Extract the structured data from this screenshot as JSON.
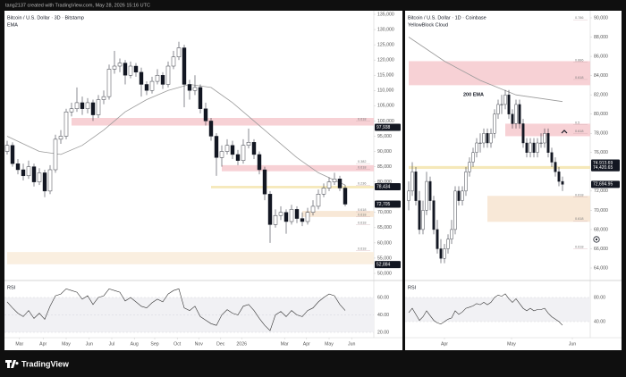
{
  "header": "tang2137 created with TradingView.com, May 28, 2026 15:16 UTC",
  "brand": "TradingView",
  "chart_data": [
    {
      "type": "candlestick",
      "title": "Bitcoin / U.S. Dollar · 3D · Bitstamp",
      "subtitle": "EMA",
      "up_color": "#ffffff",
      "down_color": "#131722",
      "candles": [
        [
          90000,
          93500,
          89000,
          92000
        ],
        [
          92000,
          93000,
          85000,
          86000
        ],
        [
          86000,
          87500,
          82500,
          84000
        ],
        [
          84000,
          86000,
          80500,
          82000
        ],
        [
          82000,
          87000,
          81000,
          85000
        ],
        [
          85000,
          86000,
          78500,
          80000
        ],
        [
          80000,
          84500,
          79000,
          83000
        ],
        [
          83000,
          84000,
          75000,
          77000
        ],
        [
          77000,
          85500,
          76000,
          84000
        ],
        [
          84000,
          95500,
          83000,
          94000
        ],
        [
          94000,
          97000,
          92500,
          95000
        ],
        [
          95000,
          104000,
          94000,
          103000
        ],
        [
          103000,
          106000,
          101500,
          104000
        ],
        [
          104000,
          111000,
          103000,
          106000
        ],
        [
          106000,
          108000,
          102000,
          104000
        ],
        [
          104000,
          107500,
          102500,
          106000
        ],
        [
          106000,
          107000,
          100000,
          102000
        ],
        [
          102000,
          108500,
          101000,
          107000
        ],
        [
          107000,
          110000,
          105500,
          108000
        ],
        [
          108000,
          118500,
          107000,
          117000
        ],
        [
          117000,
          123000,
          115500,
          118000
        ],
        [
          118000,
          120500,
          116000,
          119000
        ],
        [
          119000,
          120000,
          112000,
          115000
        ],
        [
          115000,
          119500,
          114000,
          118000
        ],
        [
          118000,
          119000,
          114500,
          116000
        ],
        [
          116000,
          117500,
          108000,
          112000
        ],
        [
          112000,
          113000,
          108500,
          110000
        ],
        [
          110000,
          114500,
          109000,
          113000
        ],
        [
          113000,
          117000,
          112000,
          115000
        ],
        [
          115000,
          116000,
          110500,
          112000
        ],
        [
          112000,
          119500,
          111000,
          118000
        ],
        [
          118000,
          123000,
          117000,
          121000
        ],
        [
          121000,
          126000,
          120000,
          124000
        ],
        [
          124000,
          125000,
          104500,
          112000
        ],
        [
          112000,
          113500,
          107000,
          110000
        ],
        [
          110000,
          115000,
          108500,
          111000
        ],
        [
          111000,
          112000,
          102500,
          104000
        ],
        [
          104000,
          106000,
          98500,
          100000
        ],
        [
          100000,
          101000,
          93500,
          95000
        ],
        [
          95000,
          96000,
          82000,
          88000
        ],
        [
          88000,
          92000,
          85000,
          90000
        ],
        [
          90000,
          94000,
          89000,
          92000
        ],
        [
          92000,
          93500,
          87500,
          89000
        ],
        [
          89000,
          90500,
          85500,
          87000
        ],
        [
          87000,
          94000,
          86000,
          92000
        ],
        [
          92000,
          97500,
          91000,
          93000
        ],
        [
          93000,
          94000,
          87500,
          89000
        ],
        [
          89000,
          90000,
          82500,
          84000
        ],
        [
          84000,
          85000,
          74000,
          76000
        ],
        [
          76000,
          77000,
          60000,
          66000
        ],
        [
          66000,
          71000,
          65000,
          69000
        ],
        [
          69000,
          72000,
          67500,
          70000
        ],
        [
          70000,
          71000,
          63000,
          67000
        ],
        [
          67000,
          72500,
          66000,
          71000
        ],
        [
          71000,
          72000,
          66500,
          68000
        ],
        [
          68000,
          70000,
          65500,
          67000
        ],
        [
          67000,
          71500,
          66000,
          70000
        ],
        [
          70000,
          74000,
          69000,
          72000
        ],
        [
          72000,
          77500,
          71000,
          76000
        ],
        [
          76000,
          79500,
          75000,
          78000
        ],
        [
          78000,
          81500,
          77000,
          80000
        ],
        [
          80000,
          83000,
          79000,
          81000
        ],
        [
          81000,
          82000,
          77000,
          78000
        ],
        [
          78000,
          79000,
          72000,
          72705
        ]
      ],
      "ema": {
        "x": [
          0,
          6,
          10,
          14,
          18,
          22,
          26,
          30,
          34,
          38,
          42,
          46,
          50,
          54,
          58,
          63
        ],
        "values": [
          95000,
          90000,
          89000,
          92000,
          97000,
          103000,
          107000,
          110000,
          112000,
          111000,
          106000,
          100000,
          94000,
          88000,
          83000,
          79000
        ]
      },
      "ylim": [
        50000,
        135000
      ],
      "yticks": [
        {
          "value": 50000,
          "label": "50,000"
        },
        {
          "value": 55000,
          "label": "55,000"
        },
        {
          "value": 60000,
          "label": "60,000"
        },
        {
          "value": 65000,
          "label": "65,000"
        },
        {
          "value": 70000,
          "label": "70,000"
        },
        {
          "value": 80000,
          "label": "80,000"
        },
        {
          "value": 85000,
          "label": "85,000"
        },
        {
          "value": 90000,
          "label": "90,000"
        },
        {
          "value": 95000,
          "label": "95,000"
        },
        {
          "value": 100000,
          "label": "100,000"
        },
        {
          "value": 105000,
          "label": "105,000"
        },
        {
          "value": 110000,
          "label": "110,000"
        },
        {
          "value": 115000,
          "label": "115,000"
        },
        {
          "value": 120000,
          "label": "120,000"
        },
        {
          "value": 125000,
          "label": "125,000"
        },
        {
          "value": 130000,
          "label": "130,000"
        },
        {
          "value": 135000,
          "label": "135,000"
        }
      ],
      "xticks": [
        {
          "value": 2.3,
          "label": "Mar"
        },
        {
          "value": 6.7,
          "label": "Apr"
        },
        {
          "value": 11,
          "label": "May"
        },
        {
          "value": 15.3,
          "label": "Jun"
        },
        {
          "value": 19.5,
          "label": "Jul"
        },
        {
          "value": 23.7,
          "label": "Aug"
        },
        {
          "value": 27.5,
          "label": "Sep"
        },
        {
          "value": 31.7,
          "label": "Oct"
        },
        {
          "value": 35.7,
          "label": "Nov"
        },
        {
          "value": 39.8,
          "label": "Dec"
        },
        {
          "value": 43.7,
          "label": "2026"
        },
        {
          "value": 51.7,
          "label": "Mar"
        },
        {
          "value": 55.8,
          "label": "Apr"
        },
        {
          "value": 60,
          "label": "May"
        },
        {
          "value": 64.2,
          "label": "Jun"
        }
      ],
      "zones": [
        {
          "from": 98500,
          "to": 101000,
          "start": 12,
          "color": "#f6c9ce"
        },
        {
          "from": 83500,
          "to": 85500,
          "start": 40,
          "color": "#f6c9ce"
        },
        {
          "from": 77900,
          "to": 78700,
          "start": 38,
          "color": "#f3e4ad"
        },
        {
          "from": 68500,
          "to": 70500,
          "start": 55,
          "color": "#f7e4d0"
        },
        {
          "from": 53000,
          "to": 57000,
          "start": 0,
          "color": "#f9ecdb"
        }
      ],
      "fib_levels": [
        {
          "value": 100000,
          "label": "0.618"
        },
        {
          "value": 86000,
          "label": "0.382"
        },
        {
          "value": 84200,
          "label": "0.618"
        },
        {
          "value": 78800,
          "label": "0.236"
        },
        {
          "value": 70200,
          "label": "0.618"
        },
        {
          "value": 68600,
          "label": "0.618"
        },
        {
          "value": 66000,
          "label": "0.618"
        },
        {
          "value": 57500,
          "label": "0.618"
        }
      ],
      "price_tags": [
        {
          "value": 97938,
          "label": "97,938"
        },
        {
          "value": 78434,
          "label": "78,434"
        },
        {
          "value": 72705,
          "label": "72,705"
        },
        {
          "value": 52884,
          "label": "52,884"
        }
      ],
      "rsi": {
        "title": "RSI",
        "ylim": [
          20,
          60
        ],
        "yticks": [
          {
            "value": 60,
            "label": "60.00"
          },
          {
            "value": 40,
            "label": "40.00"
          },
          {
            "value": 20,
            "label": "20.00"
          }
        ],
        "values": [
          55,
          48,
          42,
          38,
          45,
          36,
          42,
          35,
          50,
          62,
          64,
          70,
          68,
          66,
          58,
          62,
          52,
          60,
          62,
          70,
          68,
          66,
          56,
          60,
          55,
          50,
          48,
          54,
          58,
          55,
          64,
          68,
          70,
          48,
          45,
          50,
          38,
          34,
          30,
          28,
          40,
          46,
          42,
          40,
          50,
          52,
          45,
          36,
          28,
          22,
          40,
          44,
          38,
          45,
          40,
          38,
          45,
          48,
          55,
          60,
          64,
          62,
          52,
          45
        ]
      }
    },
    {
      "type": "candlestick",
      "title": "Bitcoin / U.S. Dollar · 1D · Coinbase",
      "subtitle": "YellowBlock Cloud",
      "annotation": "200 EMA",
      "up_color": "#ffffff",
      "down_color": "#131722",
      "candles": [
        [
          71000,
          73000,
          70000,
          72000
        ],
        [
          72000,
          75000,
          71500,
          74000
        ],
        [
          74000,
          74500,
          70500,
          71000
        ],
        [
          71000,
          72000,
          67500,
          68000
        ],
        [
          68000,
          71000,
          67500,
          70000
        ],
        [
          70000,
          74000,
          69500,
          73000
        ],
        [
          73000,
          73500,
          70000,
          71000
        ],
        [
          71000,
          71500,
          67500,
          68000
        ],
        [
          68000,
          69000,
          65500,
          66000
        ],
        [
          66000,
          67000,
          64500,
          65000
        ],
        [
          65000,
          66500,
          64500,
          66000
        ],
        [
          66000,
          67500,
          65500,
          67000
        ],
        [
          67000,
          69000,
          66500,
          68000
        ],
        [
          68000,
          72500,
          67500,
          72000
        ],
        [
          72000,
          72500,
          70500,
          71000
        ],
        [
          71000,
          72500,
          70500,
          72000
        ],
        [
          72000,
          74500,
          71500,
          74000
        ],
        [
          74000,
          75500,
          73500,
          75000
        ],
        [
          75000,
          76500,
          74500,
          76000
        ],
        [
          76000,
          77500,
          75500,
          77000
        ],
        [
          77000,
          78000,
          76000,
          77000
        ],
        [
          77000,
          78500,
          76500,
          78000
        ],
        [
          78000,
          78500,
          76500,
          77000
        ],
        [
          77000,
          78500,
          76500,
          78000
        ],
        [
          78000,
          80500,
          77500,
          80000
        ],
        [
          80000,
          81500,
          79500,
          81000
        ],
        [
          81000,
          82000,
          80000,
          81000
        ],
        [
          81000,
          82500,
          80500,
          82000
        ],
        [
          82000,
          82500,
          79500,
          80000
        ],
        [
          80000,
          80500,
          78500,
          79000
        ],
        [
          79000,
          81500,
          78500,
          81000
        ],
        [
          81000,
          81500,
          78500,
          79000
        ],
        [
          79000,
          79500,
          76500,
          77000
        ],
        [
          77000,
          77500,
          75500,
          76000
        ],
        [
          76000,
          77500,
          75500,
          77000
        ],
        [
          77000,
          77500,
          75500,
          76000
        ],
        [
          76000,
          77500,
          75500,
          77000
        ],
        [
          77000,
          78000,
          76500,
          77000
        ],
        [
          77000,
          78500,
          76500,
          78000
        ],
        [
          78000,
          78500,
          75500,
          76000
        ],
        [
          76000,
          76500,
          74500,
          75000
        ],
        [
          75000,
          75500,
          73500,
          74000
        ],
        [
          74000,
          74500,
          72500,
          73000
        ],
        [
          73000,
          73500,
          72000,
          72694.95
        ]
      ],
      "ema": {
        "x": [
          0,
          10,
          20,
          30,
          43
        ],
        "values": [
          88000,
          85500,
          83500,
          82000,
          81300
        ]
      },
      "ylim": [
        64000,
        90000
      ],
      "yticks": [
        {
          "value": 64000,
          "label": "64,000"
        },
        {
          "value": 66000,
          "label": "66,000"
        },
        {
          "value": 68000,
          "label": "68,000"
        },
        {
          "value": 70000,
          "label": "70,000"
        },
        {
          "value": 72000,
          "label": "72,000"
        },
        {
          "value": 76000,
          "label": "76,000"
        },
        {
          "value": 78000,
          "label": "78,000"
        },
        {
          "value": 80000,
          "label": "80,000"
        },
        {
          "value": 82000,
          "label": "82,000"
        },
        {
          "value": 84000,
          "label": "84,000"
        },
        {
          "value": 86000,
          "label": "86,000"
        },
        {
          "value": 88000,
          "label": "88,000"
        },
        {
          "value": 90000,
          "label": "90,000"
        }
      ],
      "xticks": [
        {
          "value": 10,
          "label": "Apr"
        },
        {
          "value": 28.75,
          "label": "May"
        },
        {
          "value": 45.75,
          "label": "Jun"
        }
      ],
      "zones": [
        {
          "from": 83000,
          "to": 85500,
          "start": 0,
          "color": "#f6c9ce"
        },
        {
          "from": 77700,
          "to": 79000,
          "start": 27,
          "color": "#f6c9ce"
        },
        {
          "from": 74300,
          "to": 74600,
          "start": 0,
          "color": "#f3e4ad"
        },
        {
          "from": 68800,
          "to": 71500,
          "start": 22,
          "color": "#f7e4d0"
        }
      ],
      "fib_levels": [
        {
          "value": 89800,
          "label": "0.786"
        },
        {
          "value": 85400,
          "label": "0.886"
        },
        {
          "value": 83600,
          "label": "0.618"
        },
        {
          "value": 78900,
          "label": "0.5"
        },
        {
          "value": 78000,
          "label": "0.618"
        },
        {
          "value": 71400,
          "label": "0.618"
        },
        {
          "value": 68900,
          "label": "0.618"
        },
        {
          "value": 66000,
          "label": "0.618"
        }
      ],
      "price_tags": [
        {
          "value": 74913.69,
          "label": "74,913.69"
        },
        {
          "value": 74420.65,
          "label": "74,420.65"
        },
        {
          "value": 72694.95,
          "label": "72,694.95"
        }
      ],
      "rsi": {
        "title": "RSI",
        "ylim": [
          40,
          80
        ],
        "yticks": [
          {
            "value": 80,
            "label": "80.00"
          },
          {
            "value": 40,
            "label": "40.00"
          }
        ],
        "values": [
          55,
          62,
          52,
          42,
          48,
          58,
          50,
          42,
          38,
          36,
          40,
          44,
          46,
          58,
          52,
          56,
          62,
          64,
          66,
          70,
          68,
          72,
          68,
          72,
          80,
          84,
          82,
          86,
          78,
          72,
          78,
          70,
          62,
          58,
          62,
          58,
          60,
          60,
          62,
          54,
          48,
          44,
          40,
          34
        ]
      }
    }
  ]
}
